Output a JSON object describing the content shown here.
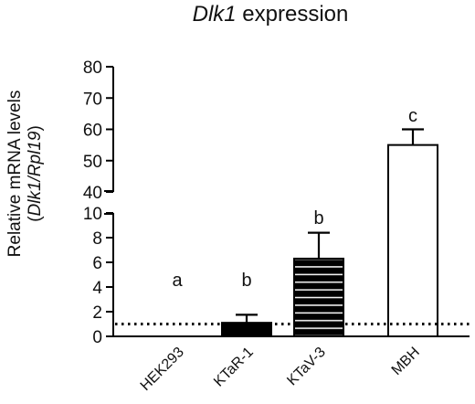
{
  "chart_data": {
    "type": "bar",
    "title": {
      "italic": "Dlk1",
      "rest": " expression"
    },
    "ylabel": {
      "line1": "Relative mRNA levels",
      "open": "(",
      "italic": "Dlk1/Rpl19",
      "close": ")"
    },
    "xlabel": "",
    "categories": [
      "HEK293",
      "KTaR-1",
      "KTaV-3",
      "MBH"
    ],
    "values": [
      0,
      1.1,
      6.3,
      55.0
    ],
    "error_upper": [
      0,
      1.75,
      8.4,
      60.0
    ],
    "significance_letters": [
      "a",
      "b",
      "b",
      "c"
    ],
    "bar_fills": [
      "none",
      "solid",
      "striped",
      "open"
    ],
    "reference_line": 1,
    "y_axis": {
      "broken": true,
      "lower_range": [
        0,
        10
      ],
      "lower_ticks": [
        "0",
        "2",
        "4",
        "6",
        "8",
        "10"
      ],
      "upper_range": [
        40,
        80
      ],
      "upper_ticks": [
        "40",
        "50",
        "60",
        "70",
        "80"
      ]
    },
    "grid": false,
    "colors": {
      "bar_outline": "#000000",
      "solid_fill": "#000000",
      "stripe_fill": "#000000",
      "stripe_gap": "#ffffff",
      "open_fill": "#ffffff"
    }
  }
}
